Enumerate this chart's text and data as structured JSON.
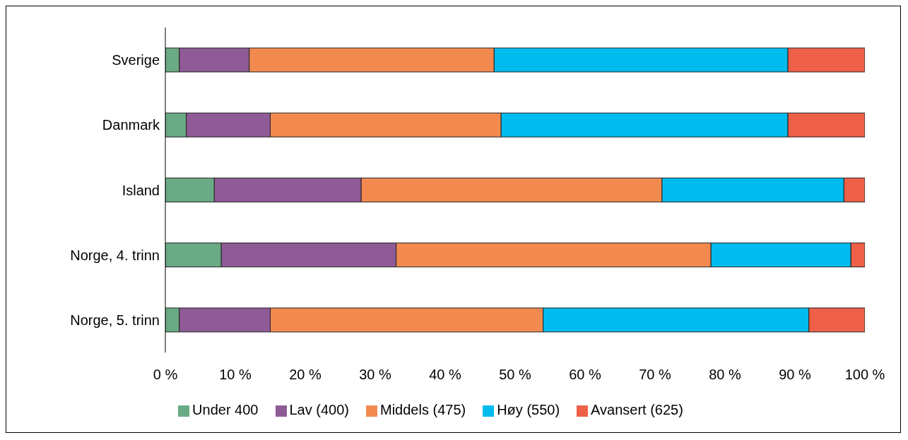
{
  "chart_data": {
    "type": "bar",
    "orientation": "horizontal",
    "stacked": true,
    "categories": [
      "Sverige",
      "Danmark",
      "Island",
      "Norge, 4. trinn",
      "Norge, 5. trinn"
    ],
    "series": [
      {
        "name": "Under 400",
        "color": "#6aaa84",
        "values": [
          2,
          3,
          7,
          8,
          2
        ]
      },
      {
        "name": "Lav (400)",
        "color": "#8e5b96",
        "values": [
          10,
          12,
          21,
          25,
          13
        ]
      },
      {
        "name": "Middels (475)",
        "color": "#f28a50",
        "values": [
          35,
          33,
          43,
          45,
          39
        ]
      },
      {
        "name": "Høy (550)",
        "color": "#00bbee",
        "values": [
          42,
          41,
          26,
          20,
          38
        ]
      },
      {
        "name": "Avansert (625)",
        "color": "#ee6048",
        "values": [
          11,
          11,
          3,
          2,
          8
        ]
      }
    ],
    "xlim": [
      0,
      100
    ],
    "xticks": [
      {
        "value": 0,
        "label": "0 %"
      },
      {
        "value": 10,
        "label": "10 %"
      },
      {
        "value": 20,
        "label": "20 %"
      },
      {
        "value": 30,
        "label": "30 %"
      },
      {
        "value": 40,
        "label": "40 %"
      },
      {
        "value": 50,
        "label": "50 %"
      },
      {
        "value": 60,
        "label": "60 %"
      },
      {
        "value": 70,
        "label": "70 %"
      },
      {
        "value": 80,
        "label": "80 %"
      },
      {
        "value": 90,
        "label": "90 %"
      },
      {
        "value": 100,
        "label": "100 %"
      }
    ],
    "legend": "bottom"
  }
}
